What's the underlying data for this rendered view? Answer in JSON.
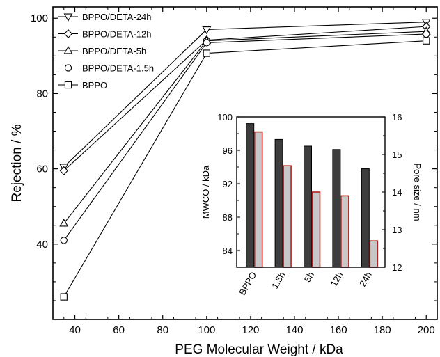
{
  "chart_data": [
    {
      "type": "line",
      "title": "",
      "xlabel": "PEG Molecular Weight / kDa",
      "ylabel": "Rejection / %",
      "xlim": [
        30,
        205
      ],
      "ylim": [
        20,
        103
      ],
      "xticks": [
        40,
        60,
        80,
        100,
        120,
        140,
        160,
        180,
        200
      ],
      "yticks": [
        40,
        60,
        80,
        100
      ],
      "grid": false,
      "legend_position": "top-left",
      "x": [
        35,
        100,
        200
      ],
      "series": [
        {
          "name": "BPPO/DETA-24h",
          "marker": "triangle-down",
          "values": [
            60.5,
            97.0,
            99.0
          ]
        },
        {
          "name": "BPPO/DETA-12h",
          "marker": "diamond",
          "values": [
            59.5,
            94.2,
            97.8
          ]
        },
        {
          "name": "BPPO/DETA-5h",
          "marker": "triangle-up",
          "values": [
            45.5,
            94.0,
            96.5
          ]
        },
        {
          "name": "BPPO/DETA-1.5h",
          "marker": "circle",
          "values": [
            41.0,
            93.5,
            95.8
          ]
        },
        {
          "name": "BPPO",
          "marker": "square",
          "values": [
            26.0,
            90.7,
            94.0
          ]
        }
      ]
    },
    {
      "type": "bar",
      "title": "",
      "categories": [
        "BPPO",
        "1.5h",
        "5h",
        "12h",
        "24h"
      ],
      "ylabel_left": "MWCO / kDa",
      "ylabel_right": "Pore size / nm",
      "ylim_left": [
        82,
        100
      ],
      "ylim_right": [
        12,
        16
      ],
      "yticks_left": [
        84,
        88,
        92,
        96,
        100
      ],
      "yticks_right": [
        12,
        13,
        14,
        15,
        16
      ],
      "series": [
        {
          "axis": "left",
          "fill": "#3d3d3d",
          "edge": "#000000",
          "values": [
            99.2,
            97.3,
            96.5,
            96.1,
            93.8
          ]
        },
        {
          "axis": "right",
          "fill": "#c8c8c8",
          "edge": "#b22222",
          "values": [
            15.6,
            14.7,
            14.0,
            13.9,
            12.7
          ]
        }
      ]
    }
  ]
}
